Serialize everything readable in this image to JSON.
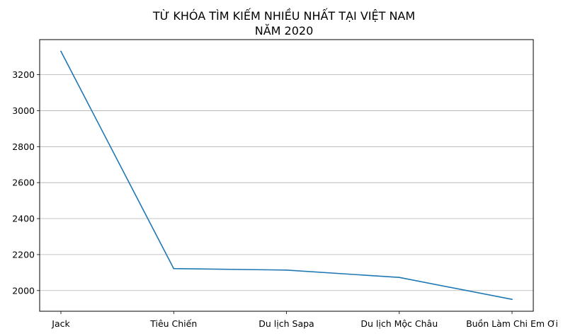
{
  "chart_data": {
    "type": "line",
    "title_lines": [
      "TỪ KHÓA TÌM KIẾM NHIỀU NHẤT TẠI VIỆT NAM",
      "NĂM 2020"
    ],
    "xlabel": "",
    "ylabel": "",
    "categories": [
      "Jack",
      "Tiêu Chiến",
      "Du lịch Sapa",
      "Du lịch Mộc Châu",
      "Buồn Làm Chi Em Ơi"
    ],
    "series": [
      {
        "values": [
          3330,
          2122,
          2114,
          2073,
          1951
        ],
        "color": "#1f77b4"
      }
    ],
    "ylim": [
      1885,
      3395
    ],
    "yticks": [
      2000,
      2200,
      2400,
      2600,
      2800,
      3000,
      3200
    ],
    "grid": "horizontal",
    "legend": "none"
  }
}
